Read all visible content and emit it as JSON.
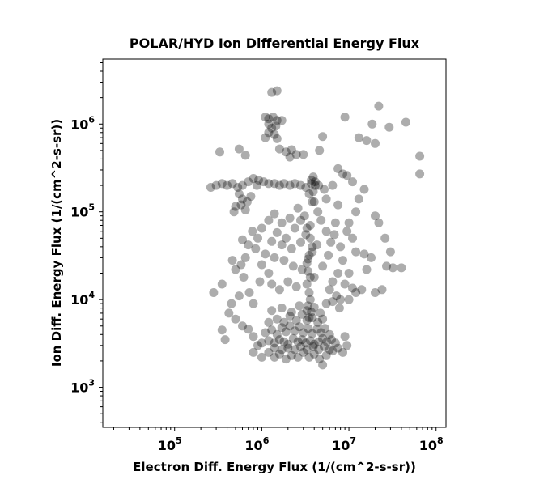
{
  "chart_data": {
    "type": "scatter",
    "title": "POLAR/HYD  Ion Differential Energy Flux",
    "xlabel": "Electron Diff. Energy Flux (1/(cm^2-s-sr))",
    "ylabel": "Ion Diff. Energy Flux (1/(cm^2-s-sr))",
    "xscale": "log",
    "yscale": "log",
    "xlim": [
      15000,
      130000000
    ],
    "ylim": [
      350,
      5500000
    ],
    "grid": false,
    "legend": "none",
    "marker_color": "#000000",
    "marker_alpha": 0.32,
    "x_ticks": [
      {
        "value": 100000,
        "base": "10",
        "exp": "5"
      },
      {
        "value": 1000000,
        "base": "10",
        "exp": "6"
      },
      {
        "value": 10000000,
        "base": "10",
        "exp": "7"
      },
      {
        "value": 100000000,
        "base": "10",
        "exp": "8"
      }
    ],
    "y_ticks": [
      {
        "value": 1000,
        "base": "10",
        "exp": "3"
      },
      {
        "value": 10000,
        "base": "10",
        "exp": "4"
      },
      {
        "value": 100000,
        "base": "10",
        "exp": "5"
      },
      {
        "value": 1000000,
        "base": "10",
        "exp": "6"
      }
    ],
    "points": [
      [
        880000.0,
        200000.0
      ],
      [
        1300000.0,
        2300000.0
      ],
      [
        1500000.0,
        2400000.0
      ],
      [
        22000000.0,
        1600000.0
      ],
      [
        45000000.0,
        1050000.0
      ],
      [
        65000000.0,
        430000.0
      ],
      [
        65000000.0,
        270000.0
      ],
      [
        330000.0,
        480000.0
      ],
      [
        550000.0,
        520000.0
      ],
      [
        650000.0,
        440000.0
      ],
      [
        2200000.0,
        510000.0
      ],
      [
        3000000.0,
        450000.0
      ],
      [
        4600000.0,
        500000.0
      ],
      [
        5000000.0,
        720000.0
      ],
      [
        7500000.0,
        310000.0
      ],
      [
        9000000.0,
        1200000.0
      ],
      [
        13000000.0,
        700000.0
      ],
      [
        16000000.0,
        650000.0
      ],
      [
        20000000.0,
        600000.0
      ],
      [
        18500000.0,
        1000000.0
      ],
      [
        29000000.0,
        920000.0
      ],
      [
        260000.0,
        190000.0
      ],
      [
        300000.0,
        200000.0
      ],
      [
        350000.0,
        210000.0
      ],
      [
        400000.0,
        200000.0
      ],
      [
        460000.0,
        210000.0
      ],
      [
        530000.0,
        190000.0
      ],
      [
        600000.0,
        200000.0
      ],
      [
        700000.0,
        220000.0
      ],
      [
        800000.0,
        240000.0
      ],
      [
        920000.0,
        230000.0
      ],
      [
        1050000.0,
        220000.0
      ],
      [
        1200000.0,
        210000.0
      ],
      [
        1400000.0,
        210000.0
      ],
      [
        1600000.0,
        200000.0
      ],
      [
        1800000.0,
        210000.0
      ],
      [
        2100000.0,
        200000.0
      ],
      [
        2400000.0,
        210000.0
      ],
      [
        2800000.0,
        200000.0
      ],
      [
        3200000.0,
        190000.0
      ],
      [
        3700000.0,
        210000.0
      ],
      [
        4100000.0,
        220000.0
      ],
      [
        4500000.0,
        200000.0
      ],
      [
        5200000.0,
        180000.0
      ],
      [
        550000.0,
        160000.0
      ],
      [
        600000.0,
        140000.0
      ],
      [
        580000.0,
        120000.0
      ],
      [
        680000.0,
        130000.0
      ],
      [
        500000.0,
        115000.0
      ],
      [
        650000.0,
        105000.0
      ],
      [
        750000.0,
        150000.0
      ],
      [
        480000.0,
        100000.0
      ],
      [
        1100000.0,
        1200000.0
      ],
      [
        1200000.0,
        1150000.0
      ],
      [
        1350000.0,
        1200000.0
      ],
      [
        1500000.0,
        1100000.0
      ],
      [
        1200000.0,
        1000000.0
      ],
      [
        1300000.0,
        900000.0
      ],
      [
        1450000.0,
        950000.0
      ],
      [
        1200000.0,
        800000.0
      ],
      [
        1400000.0,
        760000.0
      ],
      [
        1100000.0,
        700000.0
      ],
      [
        1500000.0,
        680000.0
      ],
      [
        1700000.0,
        1100000.0
      ],
      [
        1900000.0,
        480000.0
      ],
      [
        2100000.0,
        420000.0
      ],
      [
        2500000.0,
        450000.0
      ],
      [
        1600000.0,
        520000.0
      ],
      [
        3200000.0,
        55000.0
      ],
      [
        2400000.0,
        65000.0
      ],
      [
        2800000.0,
        45000.0
      ],
      [
        2200000.0,
        38000.0
      ],
      [
        1900000.0,
        50000.0
      ],
      [
        1700000.0,
        42000.0
      ],
      [
        1500000.0,
        58000.0
      ],
      [
        1300000.0,
        46000.0
      ],
      [
        1100000.0,
        33000.0
      ],
      [
        1400000.0,
        30000.0
      ],
      [
        1800000.0,
        28000.0
      ],
      [
        2300000.0,
        24000.0
      ],
      [
        2900000.0,
        22000.0
      ],
      [
        3400000.0,
        29000.0
      ],
      [
        3800000.0,
        35000.0
      ],
      [
        4300000.0,
        42000.0
      ],
      [
        3600000.0,
        70000.0
      ],
      [
        3100000.0,
        90000.0
      ],
      [
        2600000.0,
        110000.0
      ],
      [
        2100000.0,
        85000.0
      ],
      [
        1700000.0,
        75000.0
      ],
      [
        1400000.0,
        95000.0
      ],
      [
        1200000.0,
        80000.0
      ],
      [
        1000000.0,
        65000.0
      ],
      [
        900000.0,
        50000.0
      ],
      [
        850000.0,
        38000.0
      ],
      [
        1000000.0,
        25000.0
      ],
      [
        1200000.0,
        20000.0
      ],
      [
        950000.0,
        16000.0
      ],
      [
        1300000.0,
        15000.0
      ],
      [
        1600000.0,
        13000.0
      ],
      [
        2000000.0,
        16000.0
      ],
      [
        2500000.0,
        14000.0
      ],
      [
        4000000.0,
        18000.0
      ],
      [
        5000000.0,
        24000.0
      ],
      [
        5800000.0,
        32000.0
      ],
      [
        6200000.0,
        45000.0
      ],
      [
        5500000.0,
        60000.0
      ],
      [
        4800000.0,
        80000.0
      ],
      [
        4000000.0,
        130000.0
      ],
      [
        3500000.0,
        160000.0
      ],
      [
        4400000.0,
        100000.0
      ],
      [
        5500000.0,
        140000.0
      ],
      [
        6500000.0,
        200000.0
      ],
      [
        7500000.0,
        120000.0
      ],
      [
        7000000.0,
        75000.0
      ],
      [
        6800000.0,
        55000.0
      ],
      [
        8000000.0,
        40000.0
      ],
      [
        8500000.0,
        28000.0
      ],
      [
        7500000.0,
        20000.0
      ],
      [
        6500000.0,
        16000.0
      ],
      [
        7200000.0,
        11000.0
      ],
      [
        5500000.0,
        9000.0
      ],
      [
        6000000.0,
        13000.0
      ],
      [
        2800000.0,
        80000.0
      ],
      [
        3300000.0,
        65000.0
      ],
      [
        3600000.0,
        50000.0
      ],
      [
        3800000.0,
        40000.0
      ],
      [
        3500000.0,
        32000.0
      ],
      [
        3300000.0,
        26000.0
      ],
      [
        3400000.0,
        21000.0
      ],
      [
        3600000.0,
        18000.0
      ],
      [
        3300000.0,
        15000.0
      ],
      [
        3500000.0,
        12000.0
      ],
      [
        3600000.0,
        10000.0
      ],
      [
        3400000.0,
        8500.0
      ],
      [
        3700000.0,
        7200.0
      ],
      [
        3500000.0,
        6200.0
      ],
      [
        3800000.0,
        130000.0
      ],
      [
        3900000.0,
        170000.0
      ],
      [
        4100000.0,
        200000.0
      ],
      [
        3700000.0,
        230000.0
      ],
      [
        3900000.0,
        250000.0
      ],
      [
        350000.0,
        4500.0
      ],
      [
        380000.0,
        3500.0
      ],
      [
        420000.0,
        7000.0
      ],
      [
        500000.0,
        6000.0
      ],
      [
        600000.0,
        5000.0
      ],
      [
        700000.0,
        4600.0
      ],
      [
        800000.0,
        3800.0
      ],
      [
        900000.0,
        3000.0
      ],
      [
        800000.0,
        2500.0
      ],
      [
        1000000.0,
        2200.0
      ],
      [
        1200000.0,
        2500.0
      ],
      [
        1400000.0,
        2200.0
      ],
      [
        1600000.0,
        2400.0
      ],
      [
        1900000.0,
        2100.0
      ],
      [
        2200000.0,
        2300.0
      ],
      [
        2600000.0,
        2200.0
      ],
      [
        3000000.0,
        2500.0
      ],
      [
        3500000.0,
        2200.0
      ],
      [
        4000000.0,
        2400.0
      ],
      [
        4600000.0,
        2100.0
      ],
      [
        5000000.0,
        1800.0
      ],
      [
        5500000.0,
        2300.0
      ],
      [
        6500000.0,
        2600.0
      ],
      [
        7500000.0,
        2800.0
      ],
      [
        8500000.0,
        2500.0
      ],
      [
        9500000.0,
        3000.0
      ],
      [
        9000000.0,
        3800.0
      ],
      [
        1000000.0,
        3200.0
      ],
      [
        1200000.0,
        3400.0
      ],
      [
        1400000.0,
        3200.0
      ],
      [
        1600000.0,
        3500.0
      ],
      [
        1800000.0,
        3300.0
      ],
      [
        2000000.0,
        3100.0
      ],
      [
        2300000.0,
        3600.0
      ],
      [
        2600000.0,
        3300.0
      ],
      [
        2900000.0,
        3500.0
      ],
      [
        3200000.0,
        3200.0
      ],
      [
        3600000.0,
        3400.0
      ],
      [
        4000000.0,
        3100.0
      ],
      [
        4500000.0,
        3300.0
      ],
      [
        5000000.0,
        3600.0
      ],
      [
        5600000.0,
        3300.0
      ],
      [
        6300000.0,
        3500.0
      ],
      [
        7000000.0,
        3200.0
      ],
      [
        1100000.0,
        4200.0
      ],
      [
        1300000.0,
        4500.0
      ],
      [
        1500000.0,
        4000.0
      ],
      [
        1700000.0,
        4800.0
      ],
      [
        1900000.0,
        4300.0
      ],
      [
        2100000.0,
        5000.0
      ],
      [
        2400000.0,
        4400.0
      ],
      [
        2700000.0,
        4900.0
      ],
      [
        3000000.0,
        4200.0
      ],
      [
        3400000.0,
        4700.0
      ],
      [
        3800000.0,
        4100.0
      ],
      [
        4300000.0,
        4600.0
      ],
      [
        4800000.0,
        4200.0
      ],
      [
        5300000.0,
        4700.0
      ],
      [
        6000000.0,
        4000.0
      ],
      [
        1200000.0,
        5500.0
      ],
      [
        1500000.0,
        6000.0
      ],
      [
        1800000.0,
        5500.0
      ],
      [
        2100000.0,
        6500.0
      ],
      [
        2500000.0,
        5800.0
      ],
      [
        2900000.0,
        6800.0
      ],
      [
        3300000.0,
        5800.0
      ],
      [
        3800000.0,
        6200.0
      ],
      [
        4400000.0,
        5500.0
      ],
      [
        5000000.0,
        6000.0
      ],
      [
        1300000.0,
        7500.0
      ],
      [
        1700000.0,
        8000.0
      ],
      [
        2200000.0,
        7200.0
      ],
      [
        2700000.0,
        8500.0
      ],
      [
        3300000.0,
        7500.0
      ],
      [
        4000000.0,
        8200.0
      ],
      [
        4700000.0,
        7000.0
      ],
      [
        1400000.0,
        2800.0
      ],
      [
        1700000.0,
        2700.0
      ],
      [
        2000000.0,
        2800.0
      ],
      [
        2400000.0,
        2700.0
      ],
      [
        2800000.0,
        2900.0
      ],
      [
        3300000.0,
        2700.0
      ],
      [
        3900000.0,
        2900.0
      ],
      [
        4500000.0,
        2700.0
      ],
      [
        5200000.0,
        2900.0
      ],
      [
        6000000.0,
        2700.0
      ],
      [
        280000.0,
        12000.0
      ],
      [
        350000.0,
        15000.0
      ],
      [
        450000.0,
        9000.0
      ],
      [
        550000.0,
        11000.0
      ],
      [
        620000.0,
        18000.0
      ],
      [
        580000.0,
        25000.0
      ],
      [
        650000.0,
        30000.0
      ],
      [
        700000.0,
        42000.0
      ],
      [
        500000.0,
        22000.0
      ],
      [
        460000.0,
        28000.0
      ],
      [
        780000.0,
        60000.0
      ],
      [
        600000.0,
        48000.0
      ],
      [
        720000.0,
        12000.0
      ],
      [
        800000.0,
        9000.0
      ],
      [
        9000000.0,
        15000.0
      ],
      [
        10000000.0,
        20000.0
      ],
      [
        12000000.0,
        12000.0
      ],
      [
        14000000.0,
        13000.0
      ],
      [
        16000000.0,
        22000.0
      ],
      [
        12000000.0,
        35000.0
      ],
      [
        15000000.0,
        33000.0
      ],
      [
        18000000.0,
        30000.0
      ],
      [
        20000000.0,
        12000.0
      ],
      [
        24000000.0,
        13000.0
      ],
      [
        27000000.0,
        24000.0
      ],
      [
        32000000.0,
        23000.0
      ],
      [
        40000000.0,
        23000.0
      ],
      [
        30000000.0,
        35000.0
      ],
      [
        26000000.0,
        50000.0
      ],
      [
        22000000.0,
        75000.0
      ],
      [
        20000000.0,
        90000.0
      ],
      [
        13000000.0,
        140000.0
      ],
      [
        15000000.0,
        180000.0
      ],
      [
        12000000.0,
        100000.0
      ],
      [
        10000000.0,
        75000.0
      ],
      [
        11000000.0,
        50000.0
      ],
      [
        9500000.0,
        60000.0
      ],
      [
        9500000.0,
        260000.0
      ],
      [
        11000000.0,
        220000.0
      ],
      [
        8500000.0,
        270000.0
      ],
      [
        8000000.0,
        10000.0
      ],
      [
        7800000.0,
        8000.0
      ],
      [
        6500000.0,
        9500.0
      ],
      [
        10000000.0,
        10000.0
      ],
      [
        11000000.0,
        13500.0
      ]
    ]
  }
}
